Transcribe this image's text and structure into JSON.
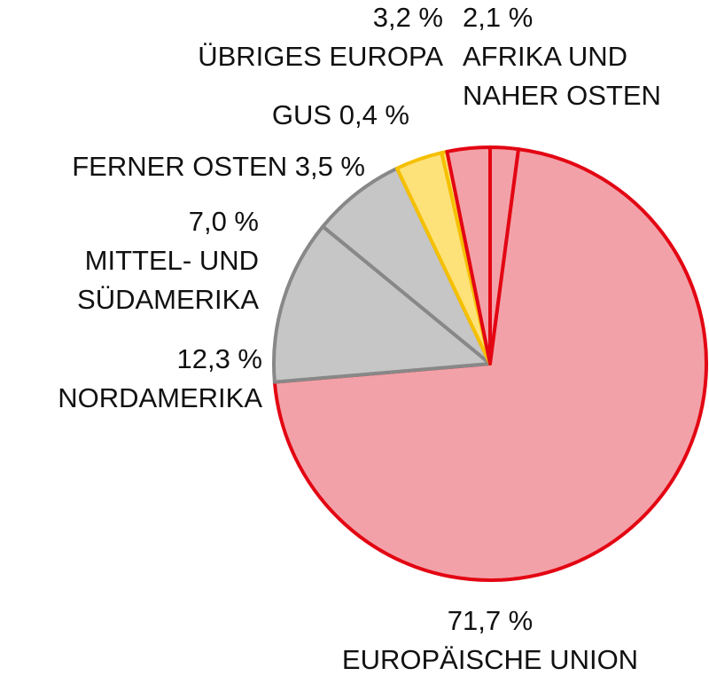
{
  "chart_data": {
    "type": "pie",
    "categories": [
      "AFRIKA UND NAHER OSTEN",
      "EUROPÄISCHE UNION",
      "NORDAMERIKA",
      "MITTEL- UND SÜDAMERIKA",
      "FERNER OSTEN",
      "GUS",
      "ÜBRIGES EUROPA"
    ],
    "values": [
      2.1,
      71.7,
      12.3,
      7.0,
      3.5,
      0.4,
      3.2
    ],
    "value_labels": [
      "2,1 %",
      "71,7 %",
      "12,3 %",
      "7,0 %",
      "3,5 %",
      "0,4 %",
      "3,2 %"
    ],
    "colors": [
      "#f3a1a8",
      "#f3a1a8",
      "#c6c6c6",
      "#c6c6c6",
      "#fde27a",
      "#fde27a",
      "#f3a1a8"
    ],
    "edge_colors": [
      "#e30613",
      "#e30613",
      "#888888",
      "#888888",
      "#f5c000",
      "#f5c000",
      "#e30613"
    ]
  }
}
